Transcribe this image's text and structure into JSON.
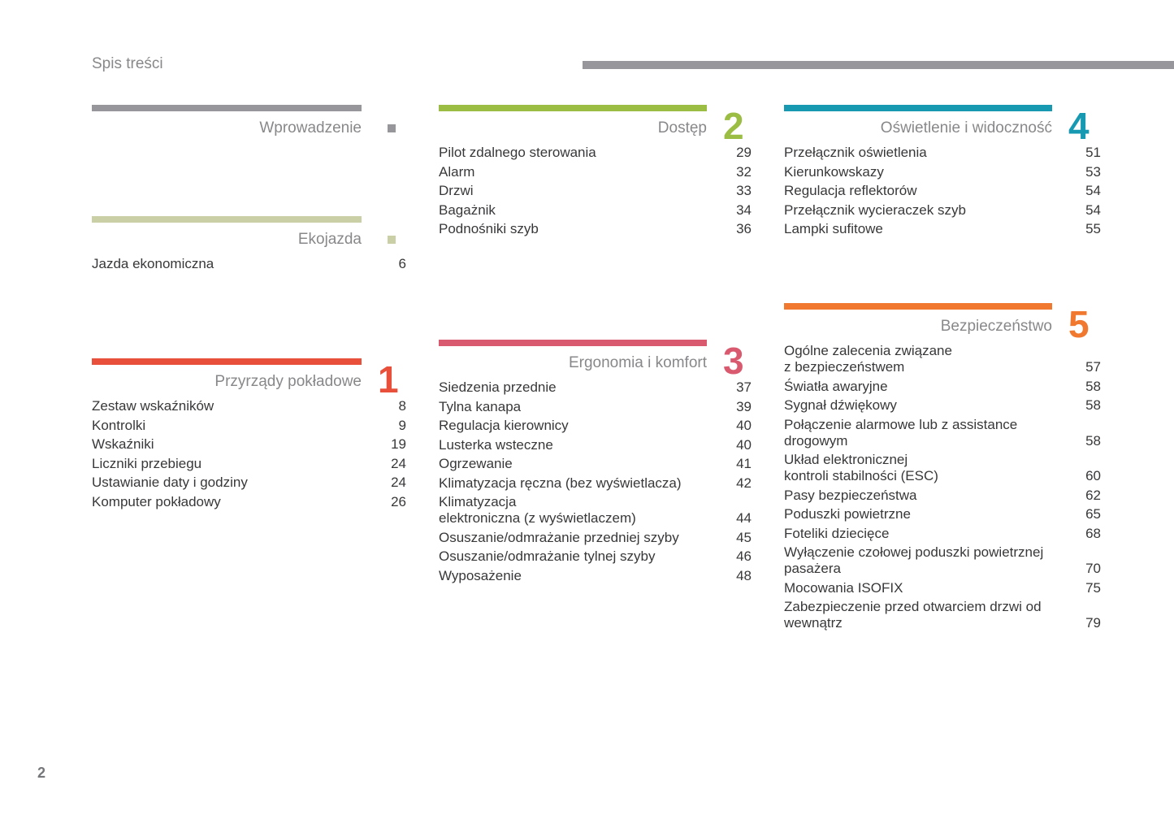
{
  "page": {
    "title": "Spis treści",
    "page_number": "2"
  },
  "decor": {
    "top_rule_color": "#97979b",
    "text_color": "#38383a",
    "heading_color": "#88888b"
  },
  "sections": [
    {
      "title": "Wprowadzenie",
      "number": "",
      "marker": "square",
      "color": "#97979b",
      "entries": []
    },
    {
      "title": "Ekojazda",
      "number": "",
      "marker": "square",
      "color": "#cacfa6",
      "entries": [
        {
          "label": "Jazda ekonomiczna",
          "page": "6"
        }
      ]
    },
    {
      "title": "Przyrządy pokładowe",
      "number": "1",
      "color": "#e8503b",
      "entries": [
        {
          "label": "Zestaw wskaźników",
          "page": "8"
        },
        {
          "label": "Kontrolki",
          "page": "9"
        },
        {
          "label": "Wskaźniki",
          "page": "19"
        },
        {
          "label": "Liczniki przebiegu",
          "page": "24"
        },
        {
          "label": "Ustawianie daty i godziny",
          "page": "24"
        },
        {
          "label": "Komputer pokładowy",
          "page": "26"
        }
      ]
    },
    {
      "title": "Dostęp",
      "number": "2",
      "color": "#9bbd44",
      "entries": [
        {
          "label": "Pilot zdalnego sterowania",
          "page": "29"
        },
        {
          "label": "Alarm",
          "page": "32"
        },
        {
          "label": "Drzwi",
          "page": "33"
        },
        {
          "label": "Bagażnik",
          "page": "34"
        },
        {
          "label": "Podnośniki szyb",
          "page": "36"
        }
      ]
    },
    {
      "title": "Ergonomia i komfort",
      "number": "3",
      "color": "#d95a6f",
      "entries": [
        {
          "label": "Siedzenia przednie",
          "page": "37"
        },
        {
          "label": "Tylna kanapa",
          "page": "39"
        },
        {
          "label": "Regulacja kierownicy",
          "page": "40"
        },
        {
          "label": "Lusterka wsteczne",
          "page": "40"
        },
        {
          "label": "Ogrzewanie",
          "page": "41"
        },
        {
          "label": "Klimatyzacja ręczna (bez wyświetlacza)",
          "page": "42"
        },
        {
          "label": "Klimatyzacja\nelektroniczna (z wyświetlaczem)",
          "page": "44"
        },
        {
          "label": "Osuszanie/odmrażanie przedniej szyby",
          "page": "45"
        },
        {
          "label": "Osuszanie/odmrażanie tylnej szyby",
          "page": "46"
        },
        {
          "label": "Wyposażenie",
          "page": "48"
        }
      ]
    },
    {
      "title": "Oświetlenie i widoczność",
      "number": "4",
      "color": "#1699b1",
      "entries": [
        {
          "label": "Przełącznik oświetlenia",
          "page": "51"
        },
        {
          "label": "Kierunkowskazy",
          "page": "53"
        },
        {
          "label": "Regulacja reflektorów",
          "page": "54"
        },
        {
          "label": "Przełącznik wycieraczek szyb",
          "page": "54"
        },
        {
          "label": "Lampki sufitowe",
          "page": "55"
        }
      ]
    },
    {
      "title": "Bezpieczeństwo",
      "number": "5",
      "color": "#f0782f",
      "entries": [
        {
          "label": "Ogólne zalecenia związane\nz bezpieczeństwem",
          "page": "57"
        },
        {
          "label": "Światła awaryjne",
          "page": "58"
        },
        {
          "label": "Sygnał dźwiękowy",
          "page": "58"
        },
        {
          "label": "Połączenie alarmowe lub z assistance\ndrogowym",
          "page": "58"
        },
        {
          "label": "Układ elektronicznej\nkontroli stabilności (ESC)",
          "page": "60"
        },
        {
          "label": "Pasy bezpieczeństwa",
          "page": "62"
        },
        {
          "label": "Poduszki powietrzne",
          "page": "65"
        },
        {
          "label": "Foteliki dziecięce",
          "page": "68"
        },
        {
          "label": "Wyłączenie czołowej poduszki powietrznej\npasażera",
          "page": "70"
        },
        {
          "label": "Mocowania ISOFIX",
          "page": "75"
        },
        {
          "label": "Zabezpieczenie przed otwarciem drzwi od\nwewnątrz",
          "page": "79"
        }
      ]
    }
  ]
}
